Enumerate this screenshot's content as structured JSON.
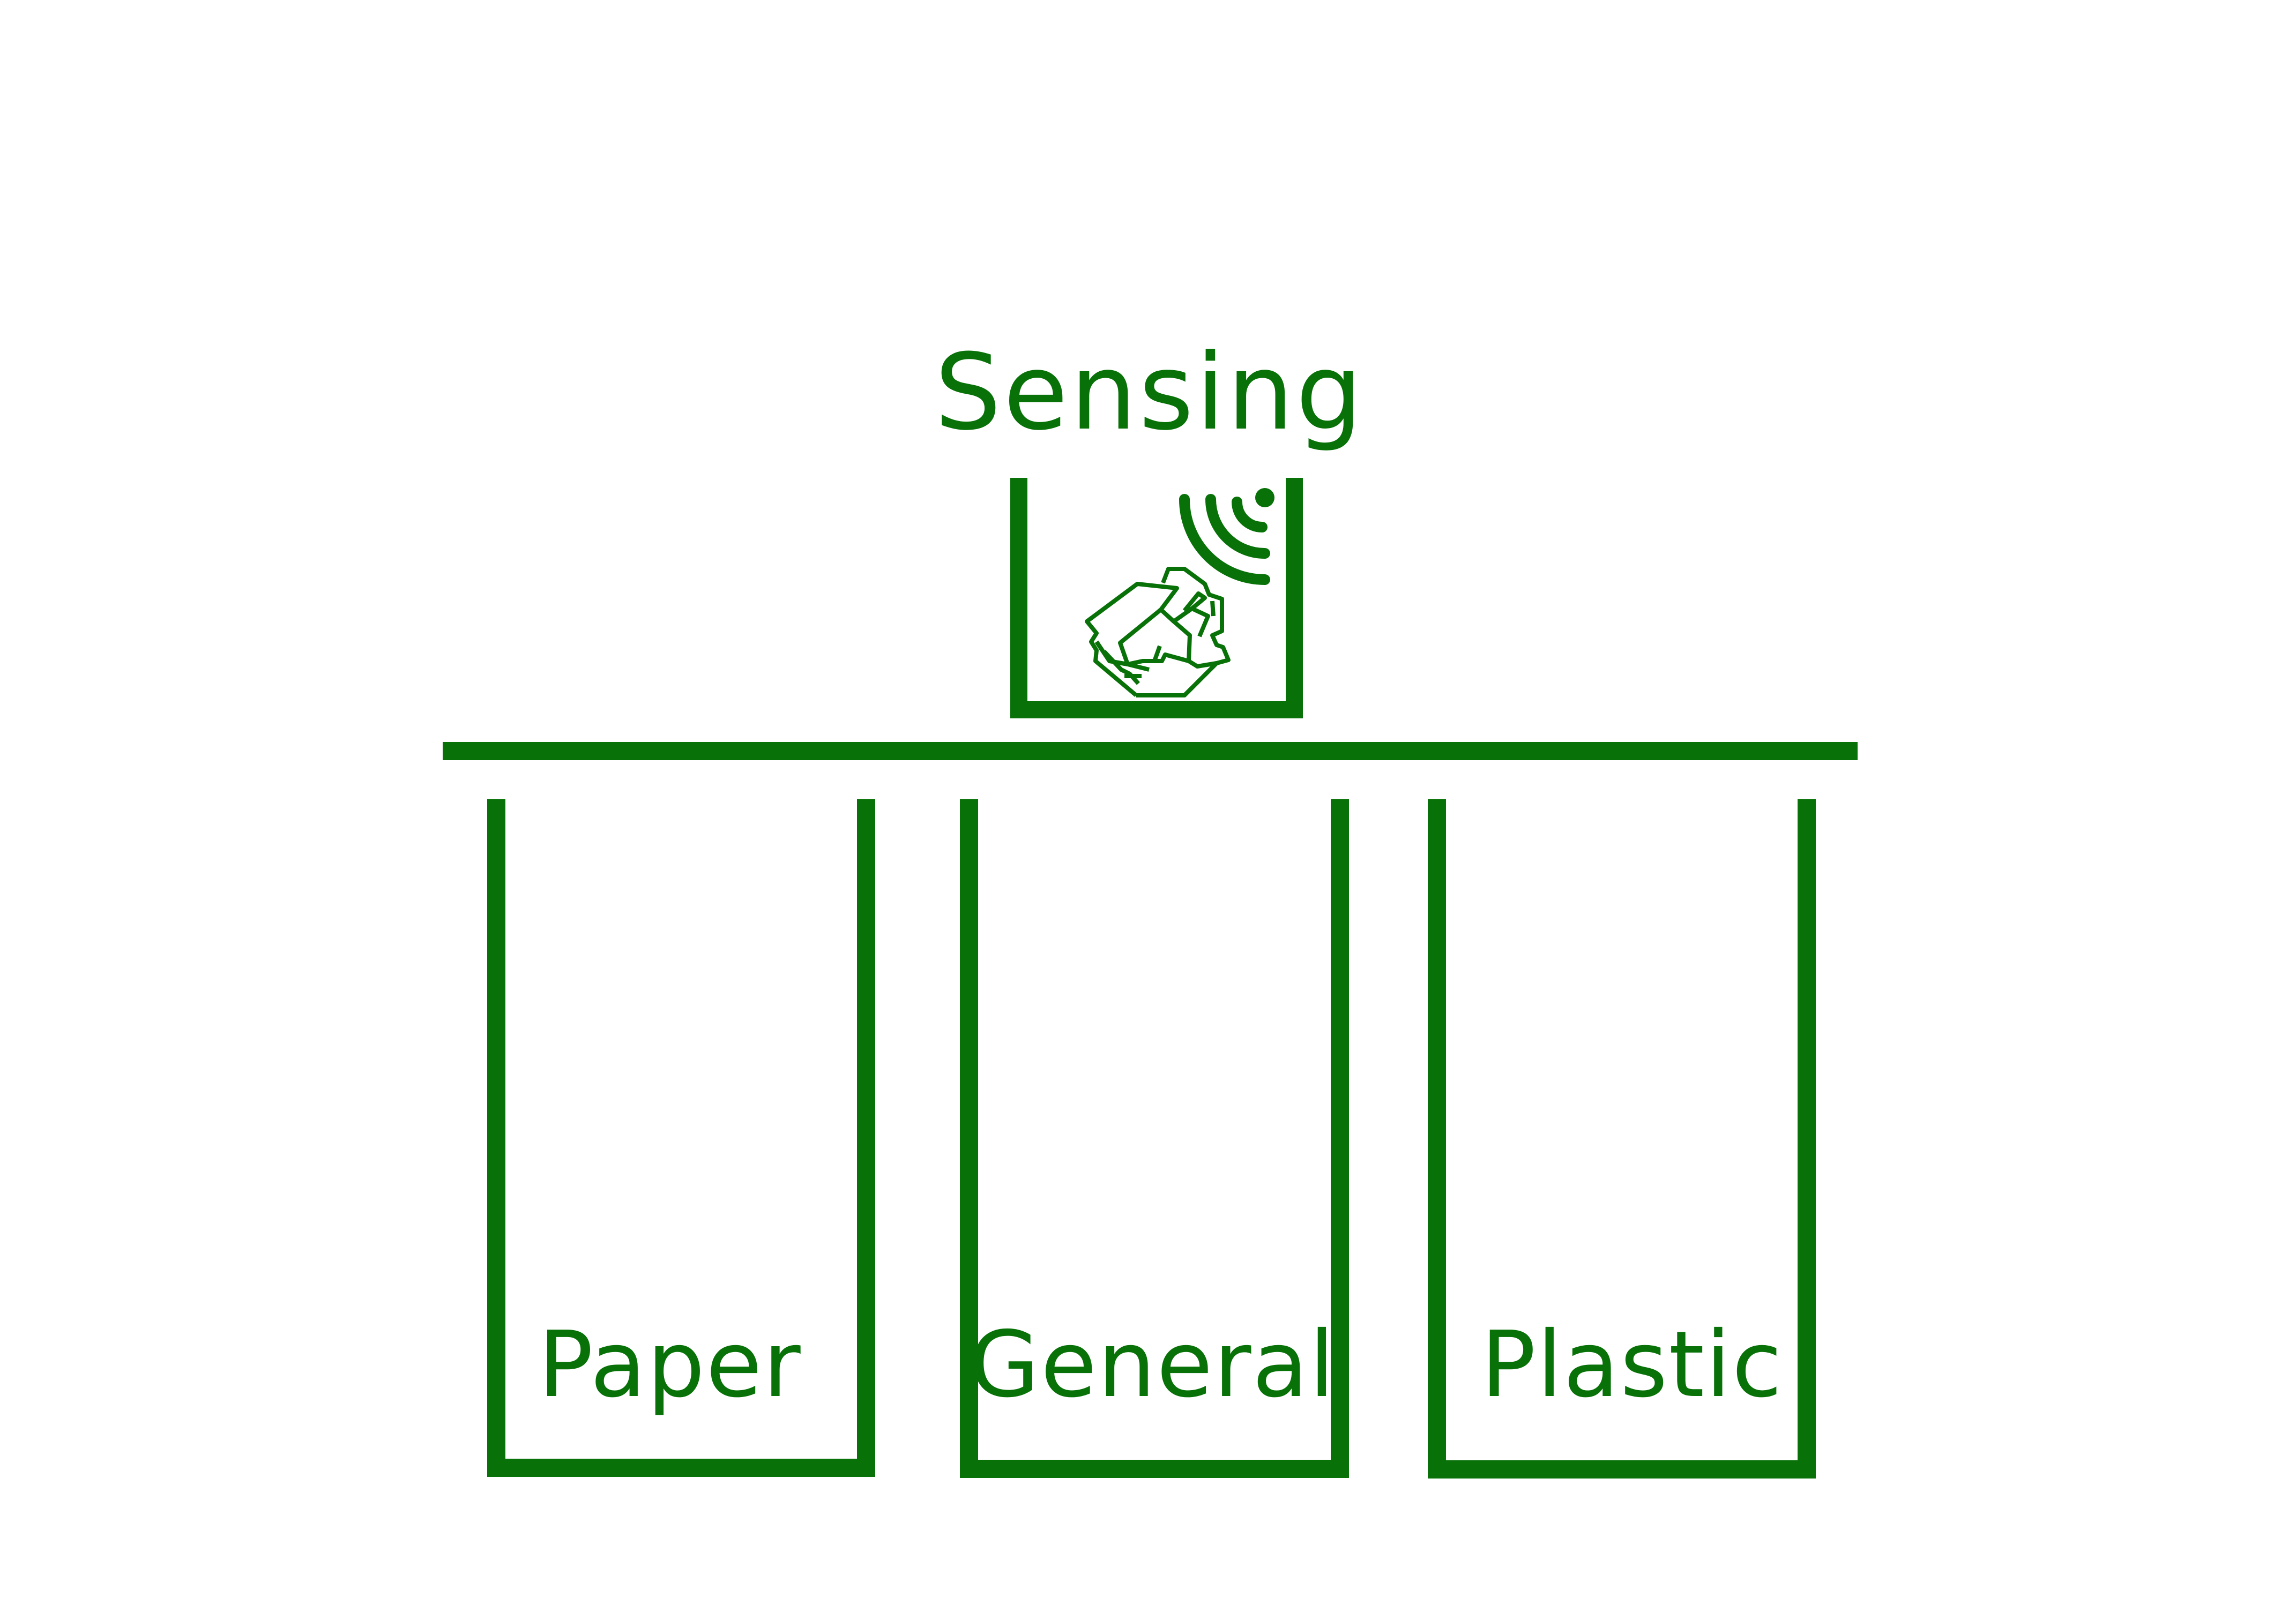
{
  "diagram": {
    "title": "Sensing",
    "bins": [
      {
        "label": "Paper"
      },
      {
        "label": "General"
      },
      {
        "label": "Plastic"
      }
    ]
  },
  "colors": {
    "stroke": "#087108",
    "background": "#ffffff"
  },
  "icons": {
    "sensor": "wireless-signal-icon",
    "item": "crumpled-paper-icon"
  }
}
